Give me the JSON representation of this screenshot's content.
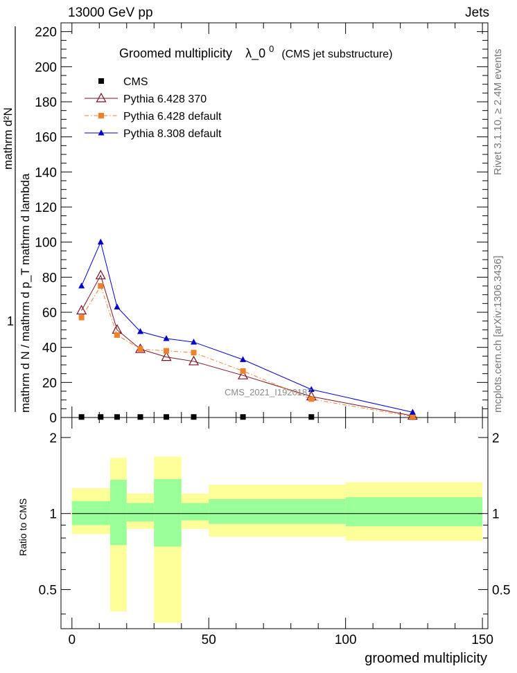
{
  "header": {
    "left": "13000 GeV pp",
    "right": "Jets"
  },
  "side_labels": {
    "rivet": "Rivet 3.1.10, ≥ 2.4M events",
    "mcplots": "mcplots.cern.ch [arXiv:1306.3436]"
  },
  "chart_data": {
    "type": "line",
    "title_main": "Groomed multiplicity",
    "title_lambda": "λ_0",
    "title_sup": "0",
    "title_suffix": "(CMS jet substructure)",
    "watermark": "CMS_2021_I1920187",
    "xlabel": "groomed multiplicity",
    "ylabel_numerator": "1",
    "ylabel_denominator": "mathrm d N / mathrm d p_T mathrm d lambda",
    "ylabel_upper": "mathrm d²N",
    "xlim": [
      -4,
      152
    ],
    "ylim": [
      0,
      225
    ],
    "x_ticks": [
      "0",
      "50",
      "100",
      "150"
    ],
    "y_ticks": [
      "0",
      "20",
      "40",
      "60",
      "80",
      "100",
      "120",
      "140",
      "160",
      "180",
      "200",
      "220"
    ],
    "x": [
      3.5,
      10.5,
      16.5,
      25,
      34.5,
      44.5,
      62.5,
      87.5,
      124.5
    ],
    "series": [
      {
        "name": "CMS",
        "color": "#000000",
        "marker": "square",
        "values": [
          0.3,
          0.3,
          0.3,
          0.3,
          0.3,
          0.3,
          0.3,
          0.3,
          0.3
        ]
      },
      {
        "name": "Pythia 6.428 370",
        "color": "#7a0f1f",
        "marker": "open-triangle",
        "line": "solid",
        "values": [
          61,
          81,
          50,
          39,
          34.5,
          32,
          24,
          12,
          1
        ]
      },
      {
        "name": "Pythia 6.428 default",
        "color": "#f0802a",
        "marker": "square",
        "line": "dash-dot",
        "values": [
          57,
          75,
          47,
          39,
          38,
          37,
          26.5,
          10.5,
          0.5
        ]
      },
      {
        "name": "Pythia 8.308 default",
        "color": "#0000cc",
        "marker": "filled-triangle",
        "line": "solid",
        "values": [
          75,
          100,
          63,
          49,
          45,
          43,
          33,
          16,
          3
        ]
      }
    ],
    "ratio": {
      "ylabel": "Ratio to CMS",
      "ylim": [
        0.35,
        2.4
      ],
      "y_ticks": [
        "0.5",
        "1",
        "2"
      ],
      "bins": [
        {
          "x0": 0,
          "x1": 14,
          "in_lo": 0.9,
          "in_hi": 1.12,
          "out_lo": 0.83,
          "out_hi": 1.26
        },
        {
          "x0": 14,
          "x1": 20,
          "in_lo": 0.75,
          "in_hi": 1.36,
          "out_lo": 0.41,
          "out_hi": 1.66
        },
        {
          "x0": 20,
          "x1": 30,
          "in_lo": 0.93,
          "in_hi": 1.1,
          "out_lo": 0.87,
          "out_hi": 1.2
        },
        {
          "x0": 30,
          "x1": 40,
          "in_lo": 0.74,
          "in_hi": 1.37,
          "out_lo": 0.37,
          "out_hi": 1.68
        },
        {
          "x0": 40,
          "x1": 50,
          "in_lo": 0.94,
          "in_hi": 1.1,
          "out_lo": 0.87,
          "out_hi": 1.2
        },
        {
          "x0": 50,
          "x1": 100,
          "in_lo": 0.91,
          "in_hi": 1.14,
          "out_lo": 0.81,
          "out_hi": 1.3
        },
        {
          "x0": 100,
          "x1": 150,
          "in_lo": 0.89,
          "in_hi": 1.16,
          "out_lo": 0.78,
          "out_hi": 1.33
        }
      ]
    }
  }
}
